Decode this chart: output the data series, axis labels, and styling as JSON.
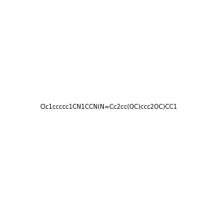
{
  "smiles": "Clc1ccccc1CN1CCN(N=Cc2cc(OC)ccc2OC)CC1",
  "background_color": "#f0f0f0",
  "atom_colors": {
    "N": "#0000FF",
    "O": "#FF0000",
    "Cl": "#00CC00",
    "C": "#000000",
    "H": "#444444"
  },
  "title": "",
  "figsize": [
    3.0,
    3.0
  ],
  "dpi": 100
}
